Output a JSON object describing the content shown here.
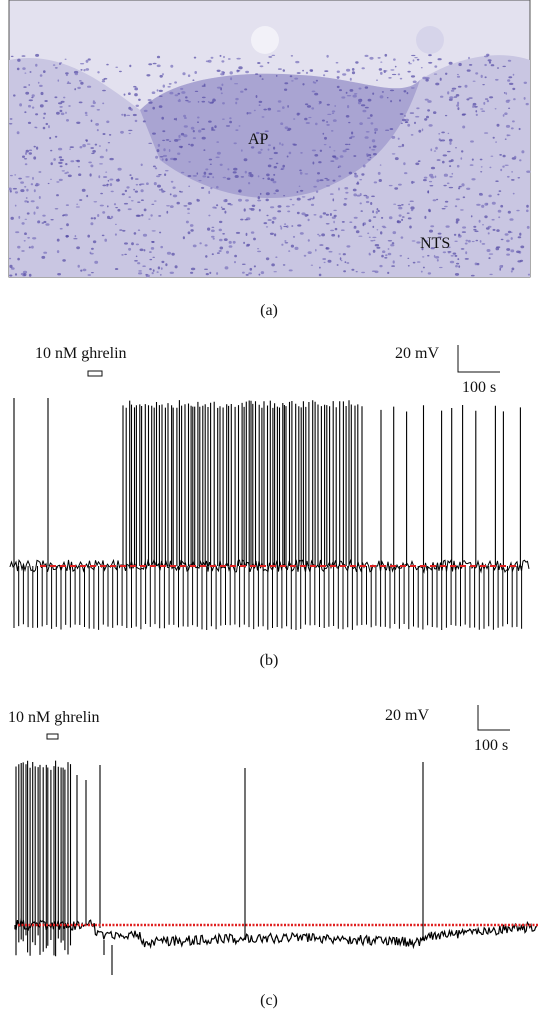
{
  "panel_a": {
    "labels": [
      "AP",
      "NTS"
    ],
    "caption": "(a)"
  },
  "panel_b": {
    "drug": "10 nM ghrelin",
    "scale_voltage": "20 mV",
    "scale_time": "100 s",
    "caption": "(b)"
  },
  "panel_c": {
    "drug": "10 nM ghrelin",
    "scale_voltage": "20 mV",
    "scale_time": "100 s",
    "caption": "(c)"
  }
}
